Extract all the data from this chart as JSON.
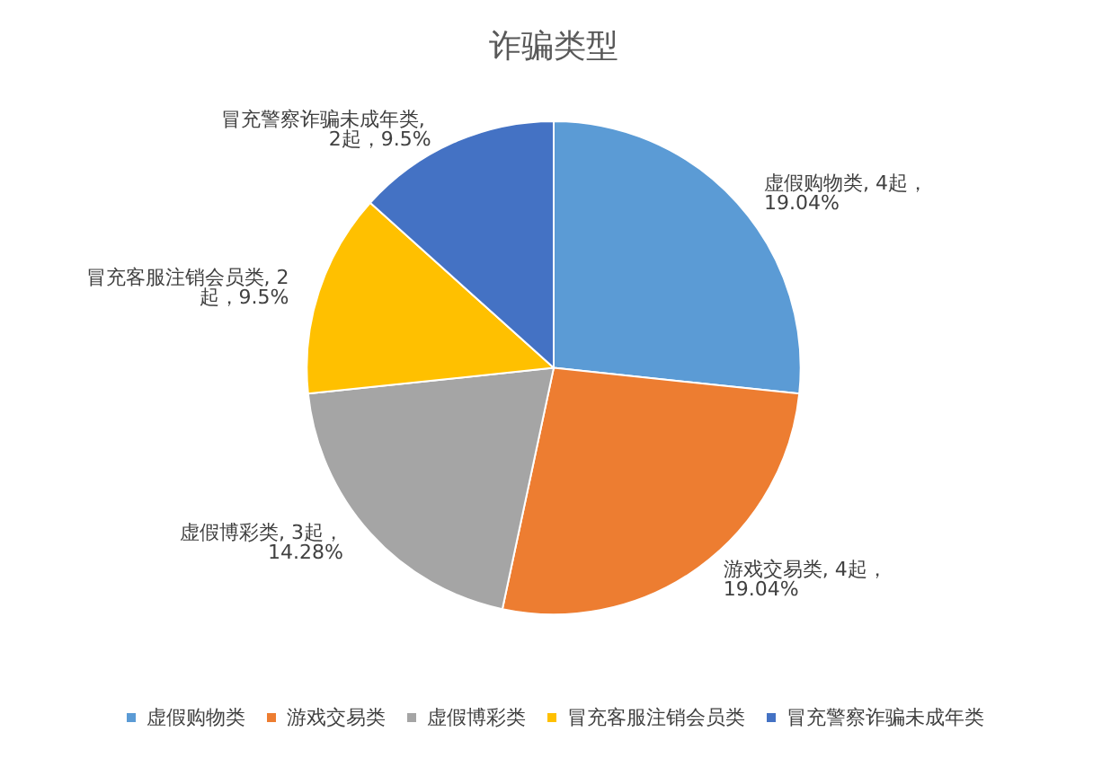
{
  "chart_data": {
    "type": "pie",
    "title": "诈骗类型",
    "categories": [
      "虚假购物类",
      "游戏交易类",
      "虚假博彩类",
      "冒充客服注销会员类",
      "冒充警察诈骗未成年类"
    ],
    "values": [
      4,
      4,
      3,
      2,
      2
    ],
    "value_labels": [
      "虚假购物类, 4起，19.04%",
      "游戏交易类, 4起，19.04%",
      "虚假博彩类, 3起，14.28%",
      "冒充客服注销会员类, 2起，9.5%",
      "冒充警察诈骗未成年类, 2起，9.5%"
    ],
    "colors": [
      "#5b9bd5",
      "#ed7d31",
      "#a5a5a5",
      "#ffc000",
      "#4472c4"
    ],
    "legend": "bottom"
  }
}
